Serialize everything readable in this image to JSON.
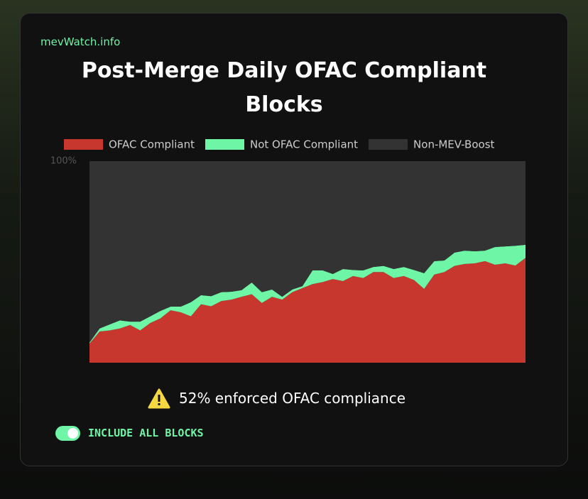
{
  "site": "mevWatch.info",
  "notice": "52% enforced OFAC compliance",
  "toggle": {
    "label": "INCLUDE ALL BLOCKS",
    "on": true
  },
  "chart_data": {
    "type": "stacked-area",
    "title": "Post-Merge Daily OFAC Compliant Blocks",
    "categories": [
      null,
      null,
      null,
      null,
      null,
      null,
      null,
      null,
      null,
      null,
      null,
      null,
      null,
      null,
      null,
      null,
      null,
      null,
      null,
      null,
      null,
      null,
      null,
      null,
      null,
      null,
      null,
      null,
      null,
      null,
      null,
      null,
      null,
      null,
      null,
      null,
      null,
      null,
      null,
      null,
      null,
      null,
      null,
      null
    ],
    "series": [
      {
        "name": "OFAC Compliant",
        "color": "#c8372d",
        "values": [
          9.5,
          15.5,
          16,
          17,
          18.7,
          16,
          19.7,
          22,
          26,
          25,
          23,
          29,
          28,
          30.6,
          31.3,
          32.7,
          34,
          29.6,
          32.7,
          31.3,
          35,
          37,
          39,
          40,
          41.5,
          40.5,
          43,
          42,
          45,
          45,
          42,
          43,
          41,
          36.6,
          43.7,
          45,
          48,
          49,
          49.3,
          50.4,
          48.6,
          49.3,
          48.2,
          52
        ]
      },
      {
        "name": "Not OFAC Compliant",
        "color": "#6ef5a6",
        "values": [
          0.5,
          1.5,
          3,
          4,
          1.7,
          4.4,
          3.3,
          3.7,
          1.8,
          2.8,
          7,
          4.5,
          5,
          4.4,
          3.9,
          3.3,
          5.8,
          5.4,
          3.6,
          1.4,
          1.3,
          1,
          6.8,
          5.8,
          2.5,
          6,
          3,
          3.8,
          2.5,
          3,
          4.5,
          4.5,
          5,
          7.8,
          6.7,
          5.7,
          6.6,
          6.6,
          6,
          5.2,
          8.8,
          8.4,
          9.8,
          6.5
        ]
      },
      {
        "name": "Non-MEV-Boost",
        "color": "#333333",
        "values": [
          90,
          83,
          81,
          79,
          79.6,
          79.6,
          77,
          74.3,
          72.2,
          72.2,
          70,
          66.5,
          67,
          65,
          64.8,
          64,
          60.2,
          65,
          63.7,
          67.3,
          63.7,
          62,
          54.2,
          54.2,
          56,
          53.5,
          54,
          54.2,
          52.5,
          52,
          53.5,
          52.5,
          54,
          55.6,
          49.6,
          49.3,
          45.4,
          44.4,
          44.7,
          44.4,
          42.6,
          42.3,
          42,
          41.5
        ]
      }
    ],
    "ylim": [
      0,
      100
    ],
    "yticks": [
      {
        "value": 100,
        "label": "100%"
      }
    ],
    "grid": false
  }
}
